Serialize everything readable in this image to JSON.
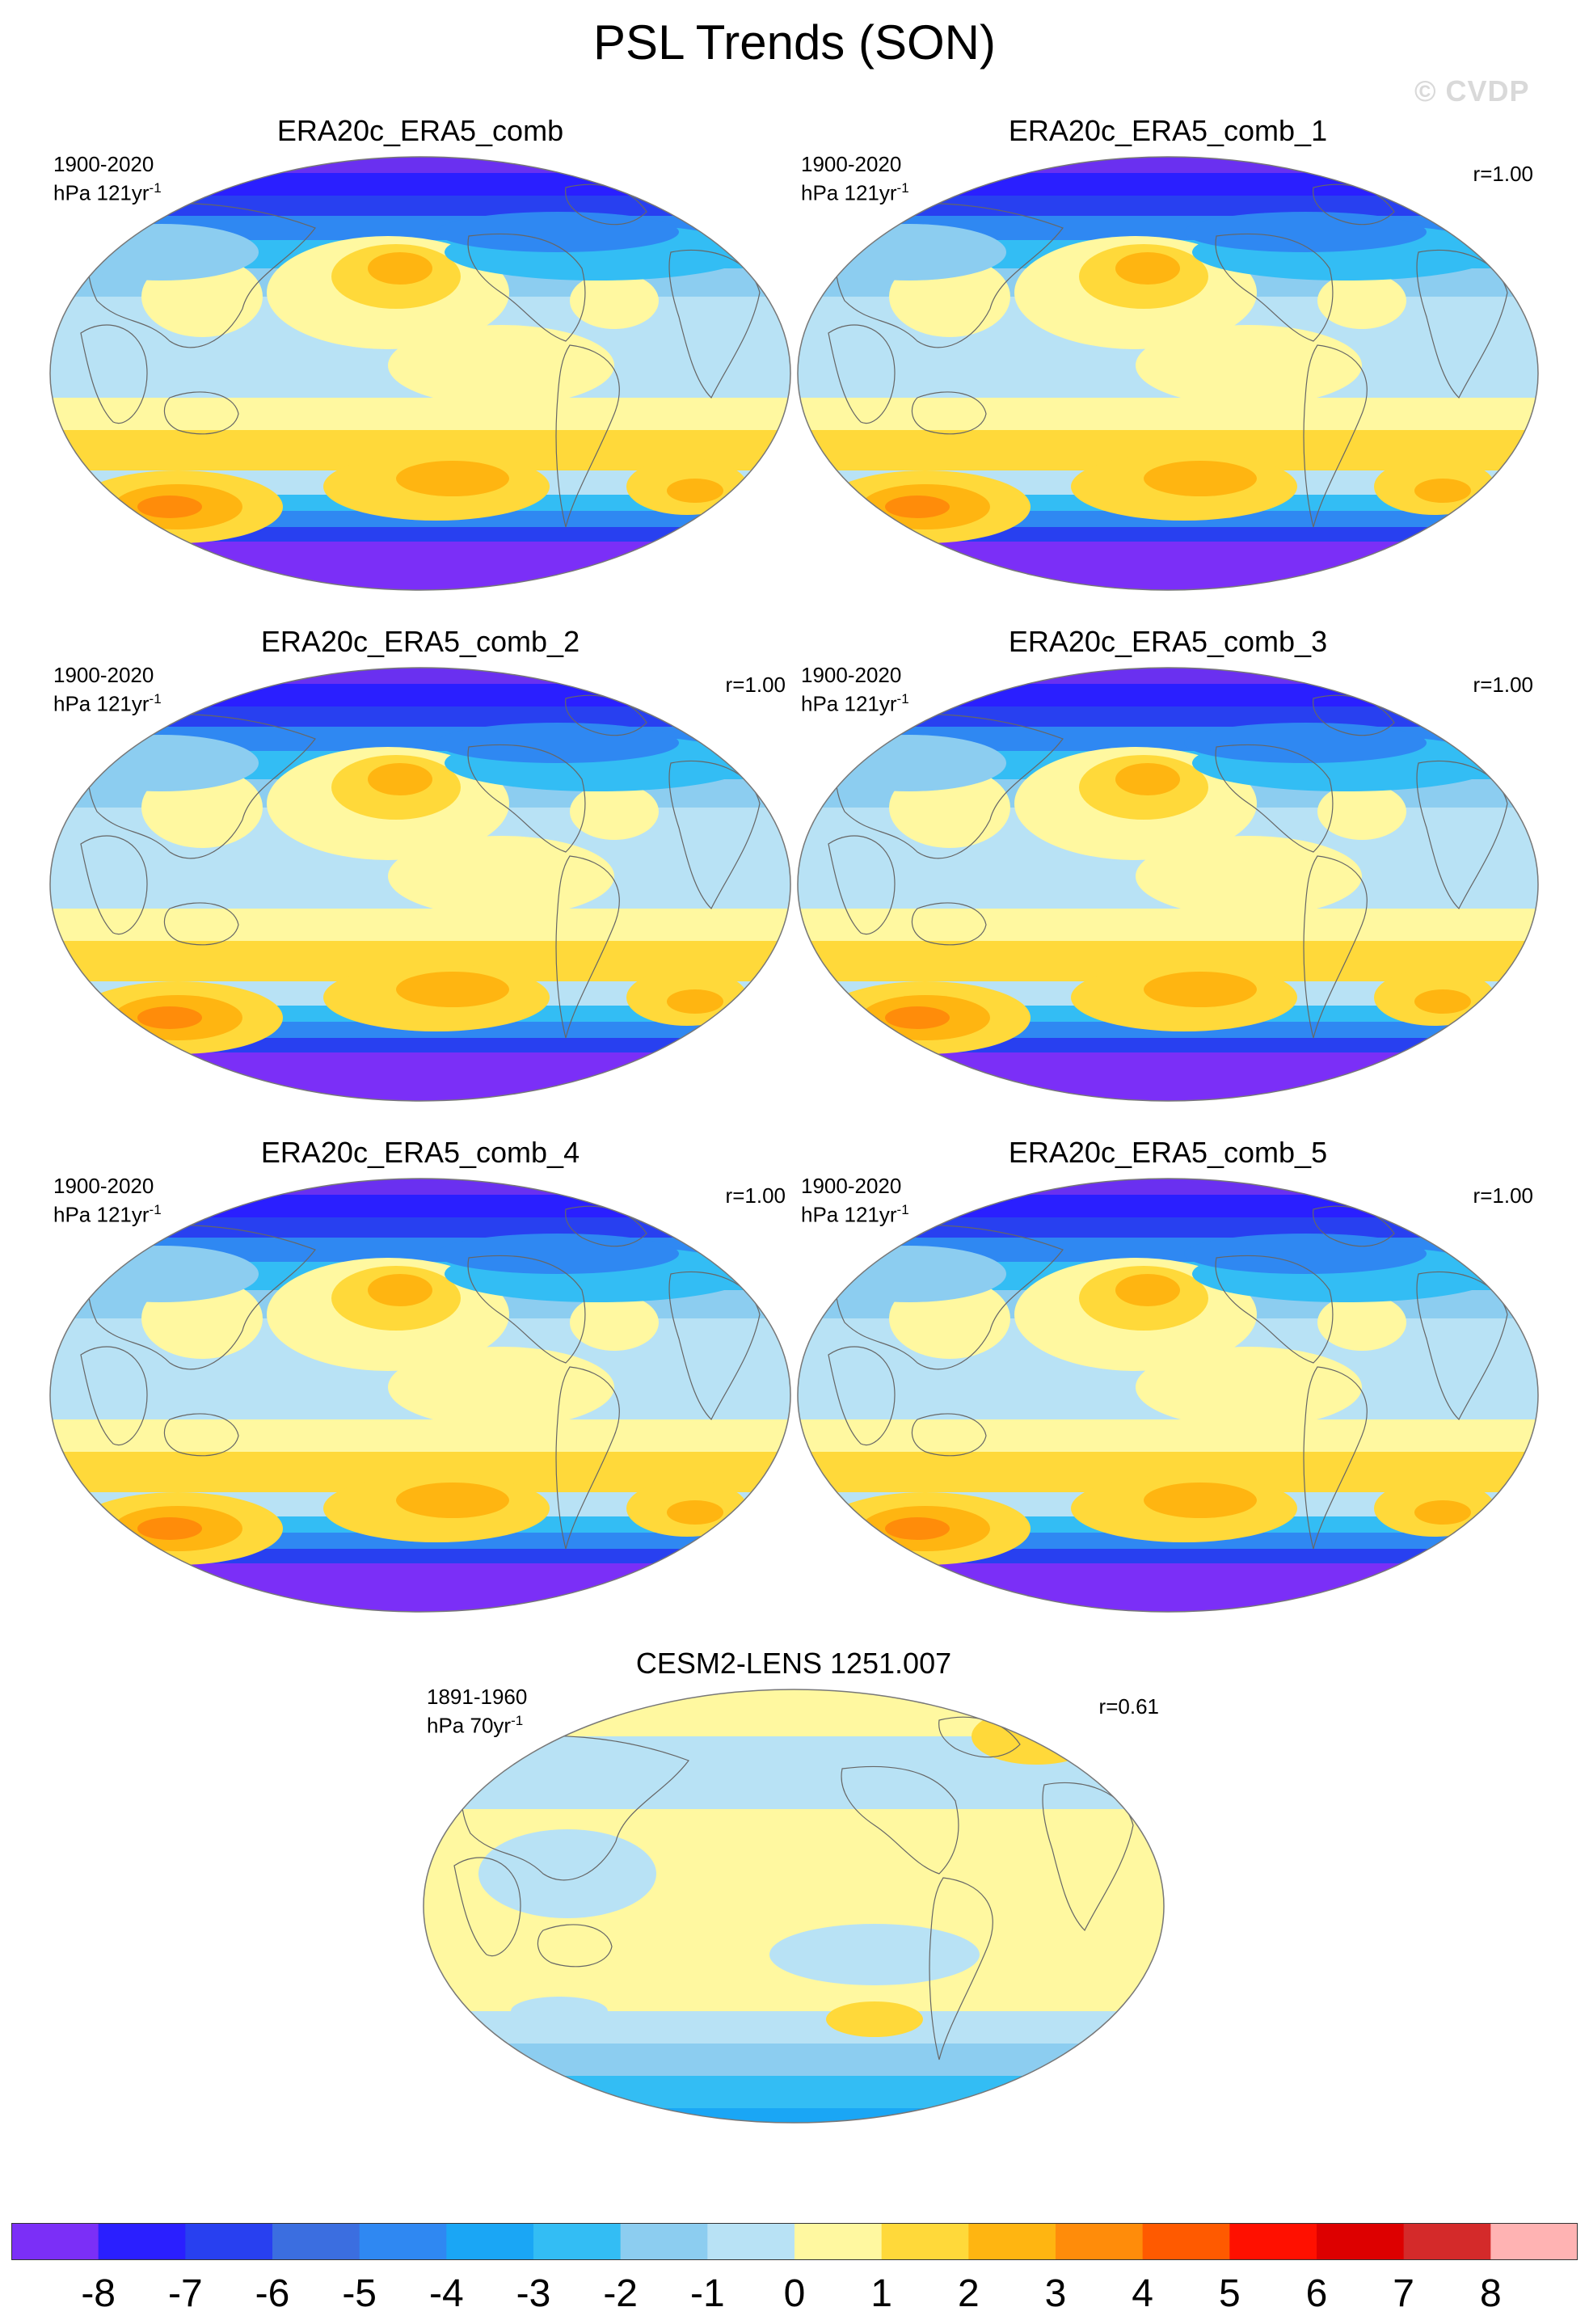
{
  "title": "PSL Trends (SON)",
  "watermark": "© CVDP",
  "panels": [
    {
      "name": "ERA20c_ERA5_comb",
      "period": "1900-2020",
      "units_base": "hPa 121yr",
      "units_exp": "-1",
      "r": "",
      "style": "obs"
    },
    {
      "name": "ERA20c_ERA5_comb_1",
      "period": "1900-2020",
      "units_base": "hPa 121yr",
      "units_exp": "-1",
      "r": "r=1.00",
      "style": "obs"
    },
    {
      "name": "ERA20c_ERA5_comb_2",
      "period": "1900-2020",
      "units_base": "hPa 121yr",
      "units_exp": "-1",
      "r": "r=1.00",
      "style": "obs"
    },
    {
      "name": "ERA20c_ERA5_comb_3",
      "period": "1900-2020",
      "units_base": "hPa 121yr",
      "units_exp": "-1",
      "r": "r=1.00",
      "style": "obs"
    },
    {
      "name": "ERA20c_ERA5_comb_4",
      "period": "1900-2020",
      "units_base": "hPa 121yr",
      "units_exp": "-1",
      "r": "r=1.00",
      "style": "obs"
    },
    {
      "name": "ERA20c_ERA5_comb_5",
      "period": "1900-2020",
      "units_base": "hPa 121yr",
      "units_exp": "-1",
      "r": "r=1.00",
      "style": "obs"
    },
    {
      "name": "CESM2-LENS 1251.007",
      "period": "1891-1960",
      "units_base": "hPa 70yr",
      "units_exp": "-1",
      "r": "r=0.61",
      "style": "model"
    }
  ],
  "colorbar": {
    "labels": [
      "-8",
      "-7",
      "-6",
      "-5",
      "-4",
      "-3",
      "-2",
      "-1",
      "0",
      "1",
      "2",
      "3",
      "4",
      "5",
      "6",
      "7",
      "8"
    ],
    "colors": [
      "#7b2ff7",
      "#2a1fff",
      "#2840f0",
      "#3b6ee0",
      "#2f88f2",
      "#1aa6f5",
      "#33bdf4",
      "#8ccdf0",
      "#b8e2f5",
      "#fff8a0",
      "#ffd93a",
      "#ffb511",
      "#ff8c0a",
      "#ff5a00",
      "#ff1000",
      "#dd0000",
      "#d42a2a",
      "#ffb3b3"
    ]
  }
}
